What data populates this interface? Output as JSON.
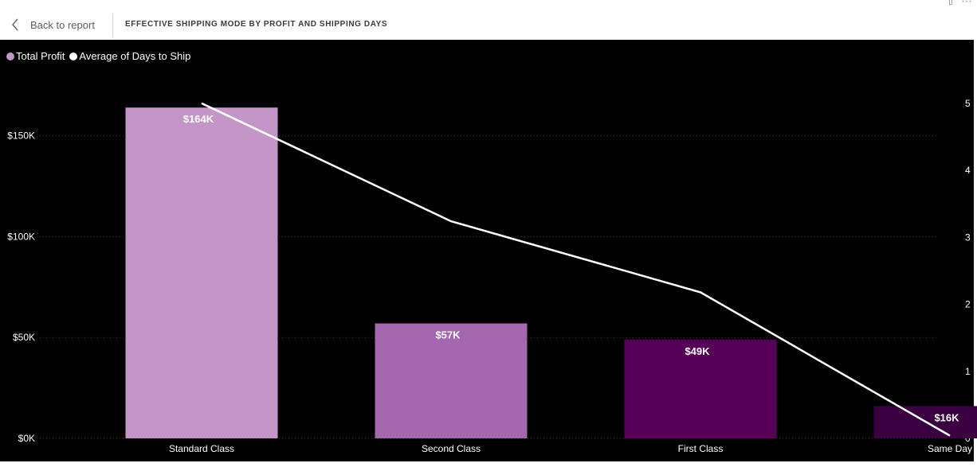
{
  "header": {
    "back_label": "Back to report",
    "title": "EFFECTIVE SHIPPING MODE BY PROFIT AND SHIPPING DAYS"
  },
  "icons": {
    "back": "chevron-left-icon",
    "filter": "filter-icon",
    "more": "more-options-icon"
  },
  "colors": {
    "background": "#000000",
    "line": "#ffffff",
    "axis_text": "#ffffff",
    "gridline": "#444444"
  },
  "chart_data": {
    "type": "bar",
    "title": "",
    "xlabel": "",
    "ylabel": "",
    "categories": [
      "Standard Class",
      "Second Class",
      "First Class",
      "Same Day"
    ],
    "series": [
      {
        "name": "Total Profit",
        "type": "bar",
        "axis": "left",
        "values": [
          164000,
          57000,
          49000,
          16000
        ],
        "labels": [
          "$164K",
          "$57K",
          "$49K",
          "$16K"
        ],
        "colors": [
          "#c496c8",
          "#a566b0",
          "#560058",
          "#3a0040"
        ]
      },
      {
        "name": "Average of Days to Ship",
        "type": "line",
        "axis": "right",
        "values": [
          5.0,
          3.24,
          2.18,
          0.04
        ]
      }
    ],
    "legend_colors": [
      "#c496c8",
      "#ffffff"
    ],
    "ylim": [
      0,
      170000
    ],
    "y_ticks": [
      0,
      50000,
      100000,
      150000
    ],
    "y_tick_labels": [
      "$0K",
      "$50K",
      "$100K",
      "$150K"
    ],
    "y2lim": [
      0,
      5.2
    ],
    "y2_ticks": [
      0,
      1,
      2,
      3,
      4,
      5
    ],
    "y2_tick_labels": [
      "0",
      "1",
      "2",
      "3",
      "4",
      "5"
    ],
    "grid": true,
    "legend_position": "top-left"
  }
}
